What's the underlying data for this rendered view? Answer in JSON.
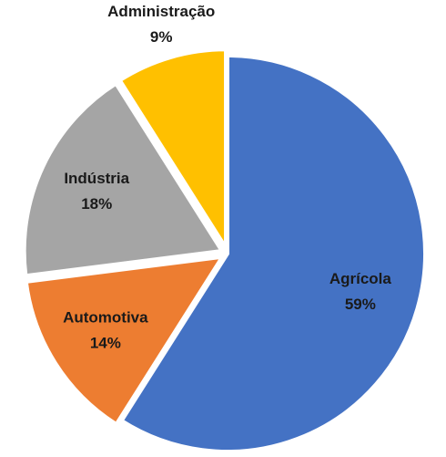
{
  "chart_data": {
    "type": "pie",
    "categories": [
      "Agrícola",
      "Automotiva",
      "Indústria",
      "Administração"
    ],
    "values": [
      59,
      14,
      18,
      9
    ],
    "value_labels": [
      "59%",
      "14%",
      "18%",
      "9%"
    ],
    "colors": [
      "#4472c4",
      "#ed7d31",
      "#a5a5a5",
      "#ffc000"
    ]
  }
}
